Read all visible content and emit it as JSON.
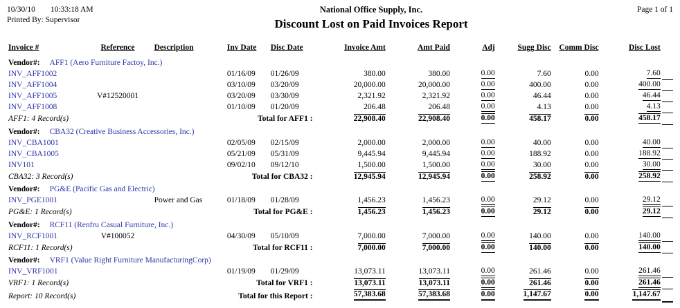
{
  "colors": {
    "link": "#2B35A8",
    "text": "#000000",
    "background": "#FFFFFF"
  },
  "header": {
    "date": "10/30/10",
    "time": "10:33:18 AM",
    "printed_by": "Printed By: Supervisor",
    "company": "National Office Supply, Inc.",
    "report_title": "Discount Lost on Paid Invoices Report",
    "page_label": "Page 1 of 1"
  },
  "table": {
    "columns": [
      "Invoice #",
      "Reference",
      "Description",
      "Inv Date",
      "Disc Date",
      "Invoice Amt",
      "Amt Paid",
      "Adj",
      "Sugg Disc",
      "Comm Disc",
      "Disc Lost"
    ],
    "groups": [
      {
        "vendor_label": "Vendor#:",
        "vendor": "AFF1 (Aero Furniture Factoy, Inc.)",
        "rows": [
          [
            "INV_AFF1002",
            "",
            "",
            "01/16/09",
            "01/26/09",
            "380.00",
            "380.00",
            "0.00",
            "7.60",
            "0.00",
            "7.60"
          ],
          [
            "INV_AFF1004",
            "",
            "",
            "03/10/09",
            "03/20/09",
            "20,000.00",
            "20,000.00",
            "0.00",
            "400.00",
            "0.00",
            "400.00"
          ],
          [
            "INV_AFF1005",
            "V#12520001",
            "",
            "03/20/09",
            "03/30/09",
            "2,321.92",
            "2,321.92",
            "0.00",
            "46.44",
            "0.00",
            "46.44"
          ],
          [
            "INV_AFF1008",
            "",
            "",
            "01/10/09",
            "01/20/09",
            "206.48",
            "206.48",
            "0.00",
            "4.13",
            "0.00",
            "4.13"
          ]
        ],
        "footer": {
          "records_label": "AFF1: 4 Record(s)",
          "total_label": "Total for AFF1 :",
          "totals": [
            "22,908.40",
            "22,908.40",
            "0.00",
            "458.17",
            "0.00",
            "458.17"
          ]
        }
      },
      {
        "vendor_label": "Vendor#:",
        "vendor": "CBA32 (Creative Business Accessories, Inc.)",
        "rows": [
          [
            "INV_CBA1001",
            "",
            "",
            "02/05/09",
            "02/15/09",
            "2,000.00",
            "2,000.00",
            "0.00",
            "40.00",
            "0.00",
            "40.00"
          ],
          [
            "INV_CBA1005",
            "",
            "",
            "05/21/09",
            "05/31/09",
            "9,445.94",
            "9,445.94",
            "0.00",
            "188.92",
            "0.00",
            "188.92"
          ],
          [
            "INV101",
            "",
            "",
            "09/02/10",
            "09/12/10",
            "1,500.00",
            "1,500.00",
            "0.00",
            "30.00",
            "0.00",
            "30.00"
          ]
        ],
        "footer": {
          "records_label": "CBA32: 3 Record(s)",
          "total_label": "Total for CBA32 :",
          "totals": [
            "12,945.94",
            "12,945.94",
            "0.00",
            "258.92",
            "0.00",
            "258.92"
          ]
        }
      },
      {
        "vendor_label": "Vendor#:",
        "vendor": "PG&E (Pacific Gas and Electric)",
        "rows": [
          [
            "INV_PGE1001",
            "",
            "Power and Gas",
            "01/18/09",
            "01/28/09",
            "1,456.23",
            "1,456.23",
            "0.00",
            "29.12",
            "0.00",
            "29.12"
          ]
        ],
        "footer": {
          "records_label": "PG&E: 1 Record(s)",
          "total_label": "Total for PG&E :",
          "totals": [
            "1,456.23",
            "1,456.23",
            "0.00",
            "29.12",
            "0.00",
            "29.12"
          ]
        }
      },
      {
        "vendor_label": "Vendor#:",
        "vendor": "RCF11 (Renfru Casual Furniture, Inc.)",
        "rows": [
          [
            "INV_RCF1001",
            "V#100052",
            "",
            "04/30/09",
            "05/10/09",
            "7,000.00",
            "7,000.00",
            "0.00",
            "140.00",
            "0.00",
            "140.00"
          ]
        ],
        "footer": {
          "records_label": "RCF11: 1 Record(s)",
          "total_label": "Total for RCF11 :",
          "totals": [
            "7,000.00",
            "7,000.00",
            "0.00",
            "140.00",
            "0.00",
            "140.00"
          ]
        }
      },
      {
        "vendor_label": "Vendor#:",
        "vendor": "VRF1 (Value Right Furniture ManufacturingCorp)",
        "rows": [
          [
            "INV_VRF1001",
            "",
            "",
            "01/19/09",
            "01/29/09",
            "13,073.11",
            "13,073.11",
            "0.00",
            "261.46",
            "0.00",
            "261.46"
          ]
        ],
        "footer": {
          "records_label": "VRF1: 1 Record(s)",
          "total_label": "Total for VRF1 :",
          "totals": [
            "13,073.11",
            "13,073.11",
            "0.00",
            "261.46",
            "0.00",
            "261.46"
          ]
        }
      }
    ],
    "report_footer": {
      "records_label": "Report: 10 Record(s)",
      "total_label": "Total for this Report :",
      "totals": [
        "57,383.68",
        "57,383.68",
        "0.00",
        "1,147.67",
        "0.00",
        "1,147.67"
      ]
    }
  }
}
